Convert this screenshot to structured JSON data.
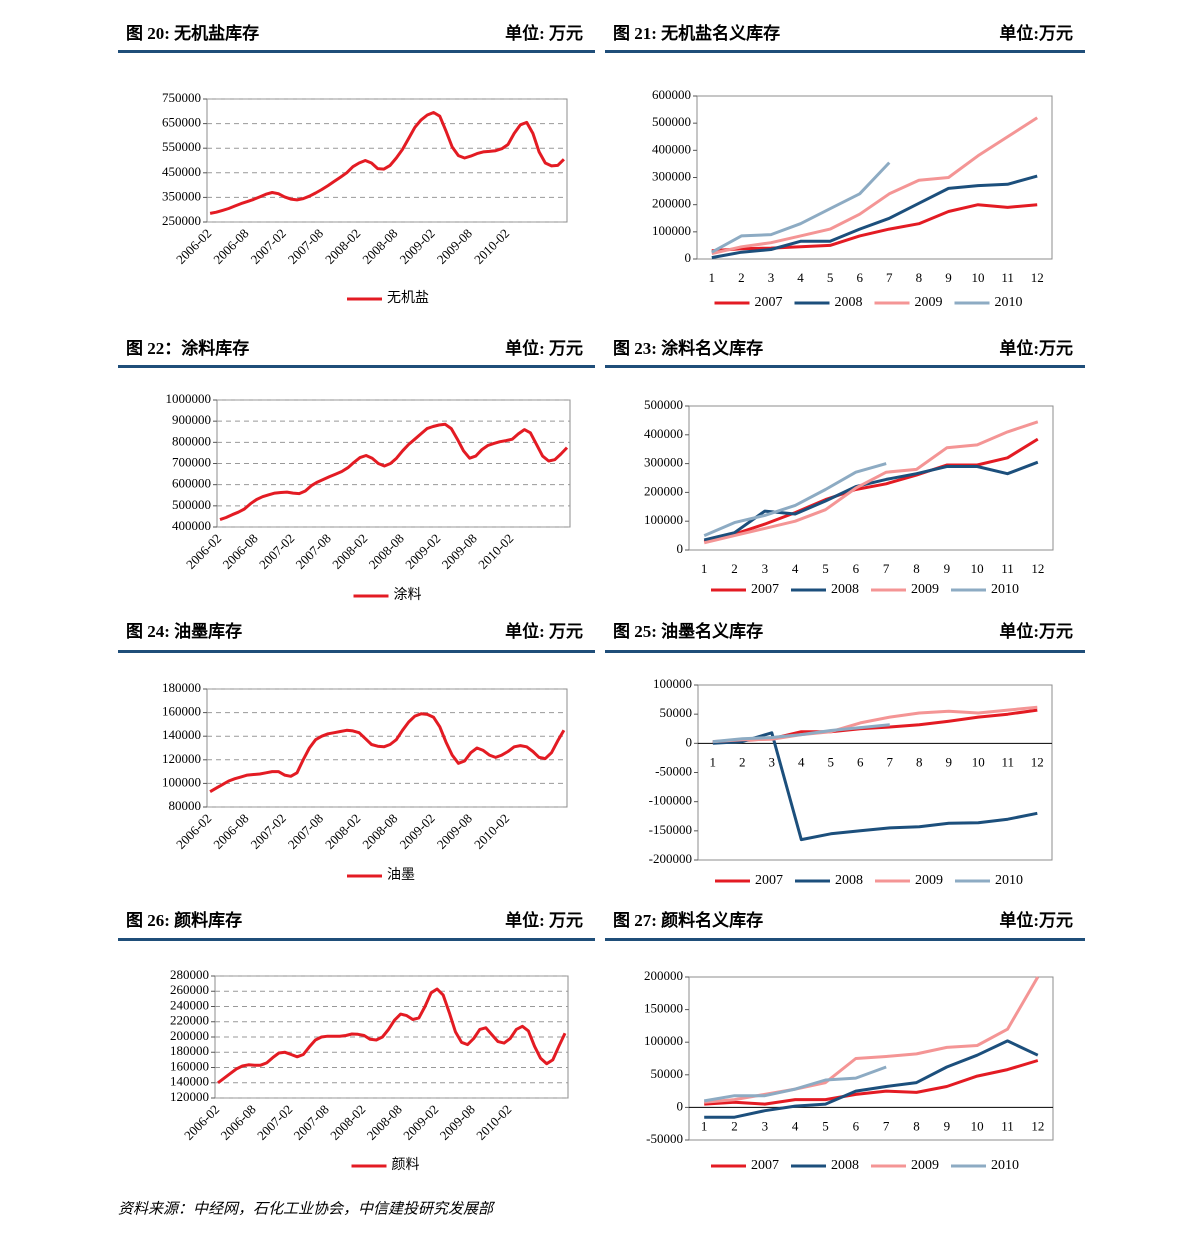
{
  "source": "资料来源：中经网，石化工业协会，中信建投研究发展部",
  "chart_data": [
    {
      "type": "line",
      "title": "图 20: 无机盐库存",
      "subtitle": "单位: 万元",
      "grid": true,
      "categories": [
        "2006-02",
        null,
        null,
        null,
        null,
        null,
        "2006-08",
        null,
        null,
        null,
        null,
        null,
        "2007-02",
        null,
        null,
        null,
        null,
        null,
        "2007-08",
        null,
        null,
        null,
        null,
        null,
        "2008-02",
        null,
        null,
        null,
        null,
        null,
        "2008-08",
        null,
        null,
        null,
        null,
        null,
        "2009-02",
        null,
        null,
        null,
        null,
        null,
        "2009-08",
        null,
        null,
        null,
        null,
        null,
        "2010-02",
        null,
        null,
        null,
        null,
        null,
        null,
        null,
        null,
        null
      ],
      "ylim": [
        250000,
        750000
      ],
      "yticks": [
        250000,
        350000,
        450000,
        550000,
        650000,
        750000
      ],
      "series": [
        {
          "name": "无机盐",
          "color": "#e31b23",
          "values": [
            285000,
            290000,
            297000,
            305000,
            315000,
            325000,
            333000,
            342000,
            352000,
            363000,
            370000,
            365000,
            352000,
            343000,
            340000,
            345000,
            355000,
            368000,
            382000,
            398000,
            415000,
            432000,
            450000,
            475000,
            490000,
            500000,
            490000,
            467000,
            465000,
            480000,
            510000,
            545000,
            590000,
            635000,
            665000,
            685000,
            695000,
            680000,
            620000,
            555000,
            520000,
            510000,
            518000,
            528000,
            535000,
            537000,
            540000,
            548000,
            565000,
            610000,
            645000,
            655000,
            610000,
            535000,
            490000,
            478000,
            480000,
            505000
          ]
        }
      ]
    },
    {
      "type": "line",
      "title": "图 21: 无机盐名义库存",
      "subtitle": "单位:万元",
      "grid": false,
      "categories": [
        "1",
        "2",
        "3",
        "4",
        "5",
        "6",
        "7",
        "8",
        "9",
        "10",
        "11",
        "12"
      ],
      "ylim": [
        0,
        600000
      ],
      "yticks": [
        0,
        100000,
        200000,
        300000,
        400000,
        500000,
        600000
      ],
      "series": [
        {
          "name": "2007",
          "color": "#e31b23",
          "values": [
            30000,
            38000,
            40000,
            45000,
            50000,
            85000,
            110000,
            130000,
            175000,
            200000,
            190000,
            200000
          ]
        },
        {
          "name": "2008",
          "color": "#1c4f7c",
          "values": [
            5000,
            25000,
            35000,
            65000,
            65000,
            110000,
            150000,
            205000,
            260000,
            270000,
            275000,
            305000
          ]
        },
        {
          "name": "2009",
          "color": "#f49595",
          "values": [
            20000,
            45000,
            60000,
            85000,
            110000,
            165000,
            240000,
            290000,
            300000,
            380000,
            450000,
            520000
          ]
        },
        {
          "name": "2010",
          "color": "#8dabc3",
          "values": [
            25000,
            85000,
            90000,
            130000,
            185000,
            240000,
            355000,
            null,
            null,
            null,
            null,
            null
          ]
        }
      ]
    },
    {
      "type": "line",
      "title": "图 22：涂料库存",
      "subtitle": "单位: 万元",
      "grid": true,
      "categories": [
        "2006-02",
        null,
        null,
        null,
        null,
        null,
        "2006-08",
        null,
        null,
        null,
        null,
        null,
        "2007-02",
        null,
        null,
        null,
        null,
        null,
        "2007-08",
        null,
        null,
        null,
        null,
        null,
        "2008-02",
        null,
        null,
        null,
        null,
        null,
        "2008-08",
        null,
        null,
        null,
        null,
        null,
        "2009-02",
        null,
        null,
        null,
        null,
        null,
        "2009-08",
        null,
        null,
        null,
        null,
        null,
        "2010-02",
        null,
        null,
        null,
        null,
        null,
        null,
        null,
        null,
        null
      ],
      "ylim": [
        400000,
        1000000
      ],
      "yticks": [
        400000,
        500000,
        600000,
        700000,
        800000,
        900000,
        1000000
      ],
      "series": [
        {
          "name": "涂料",
          "color": "#e31b23",
          "values": [
            435000,
            445000,
            458000,
            470000,
            485000,
            510000,
            530000,
            543000,
            552000,
            560000,
            563000,
            565000,
            560000,
            558000,
            570000,
            595000,
            612000,
            625000,
            638000,
            650000,
            662000,
            680000,
            705000,
            728000,
            738000,
            725000,
            700000,
            688000,
            700000,
            725000,
            760000,
            790000,
            815000,
            840000,
            865000,
            875000,
            882000,
            885000,
            865000,
            815000,
            760000,
            725000,
            735000,
            765000,
            785000,
            795000,
            803000,
            808000,
            815000,
            840000,
            860000,
            845000,
            790000,
            735000,
            712000,
            718000,
            745000,
            775000
          ]
        }
      ]
    },
    {
      "type": "line",
      "title": "图 23: 涂料名义库存",
      "subtitle": "单位:万元",
      "grid": false,
      "categories": [
        "1",
        "2",
        "3",
        "4",
        "5",
        "6",
        "7",
        "8",
        "9",
        "10",
        "11",
        "12"
      ],
      "ylim": [
        0,
        500000
      ],
      "yticks": [
        0,
        100000,
        200000,
        300000,
        400000,
        500000
      ],
      "series": [
        {
          "name": "2007",
          "color": "#e31b23",
          "values": [
            30000,
            55000,
            90000,
            130000,
            175000,
            210000,
            230000,
            260000,
            295000,
            295000,
            320000,
            385000
          ]
        },
        {
          "name": "2008",
          "color": "#1c4f7c",
          "values": [
            35000,
            60000,
            135000,
            125000,
            170000,
            220000,
            245000,
            265000,
            290000,
            290000,
            265000,
            305000
          ]
        },
        {
          "name": "2009",
          "color": "#f49595",
          "values": [
            25000,
            50000,
            75000,
            100000,
            140000,
            215000,
            270000,
            280000,
            355000,
            365000,
            410000,
            445000
          ]
        },
        {
          "name": "2010",
          "color": "#8dabc3",
          "values": [
            50000,
            95000,
            120000,
            155000,
            210000,
            270000,
            300000,
            null,
            null,
            null,
            null,
            null
          ]
        }
      ]
    },
    {
      "type": "line",
      "title": "图 24: 油墨库存",
      "subtitle": "单位: 万元",
      "grid": true,
      "categories": [
        "2006-02",
        null,
        null,
        null,
        null,
        null,
        "2006-08",
        null,
        null,
        null,
        null,
        null,
        "2007-02",
        null,
        null,
        null,
        null,
        null,
        "2007-08",
        null,
        null,
        null,
        null,
        null,
        "2008-02",
        null,
        null,
        null,
        null,
        null,
        "2008-08",
        null,
        null,
        null,
        null,
        null,
        "2009-02",
        null,
        null,
        null,
        null,
        null,
        "2009-08",
        null,
        null,
        null,
        null,
        null,
        "2010-02",
        null,
        null,
        null,
        null,
        null,
        null,
        null,
        null,
        null
      ],
      "ylim": [
        80000,
        180000
      ],
      "yticks": [
        80000,
        100000,
        120000,
        140000,
        160000,
        180000
      ],
      "series": [
        {
          "name": "油墨",
          "color": "#e31b23",
          "values": [
            93000,
            96000,
            99000,
            102000,
            104000,
            105500,
            107000,
            107500,
            108000,
            109000,
            110000,
            110000,
            107000,
            106000,
            109000,
            120000,
            130000,
            137000,
            140000,
            142000,
            143000,
            144000,
            145000,
            144500,
            143000,
            138000,
            133000,
            131500,
            131000,
            133000,
            137000,
            145000,
            152000,
            157000,
            159000,
            158500,
            156000,
            148000,
            135000,
            124000,
            117000,
            119000,
            126000,
            130000,
            128000,
            124000,
            122000,
            124000,
            127000,
            131000,
            132000,
            131000,
            127000,
            122000,
            121000,
            126000,
            136000,
            145000
          ]
        }
      ]
    },
    {
      "type": "line",
      "title": "图 25: 油墨名义库存",
      "subtitle": "单位:万元",
      "grid": false,
      "categories": [
        "1",
        "2",
        "3",
        "4",
        "5",
        "6",
        "7",
        "8",
        "9",
        "10",
        "11",
        "12"
      ],
      "ylim": [
        -200000,
        100000
      ],
      "yticks": [
        -200000,
        -150000,
        -100000,
        -50000,
        0,
        50000,
        100000
      ],
      "series": [
        {
          "name": "2007",
          "color": "#e31b23",
          "values": [
            2000,
            5000,
            8000,
            20000,
            20000,
            25000,
            28000,
            32000,
            38000,
            45000,
            50000,
            57000
          ]
        },
        {
          "name": "2008",
          "color": "#1c4f7c",
          "values": [
            0,
            3000,
            18000,
            -165000,
            -155000,
            -150000,
            -145000,
            -143000,
            -137000,
            -136000,
            -130000,
            -120000
          ]
        },
        {
          "name": "2009",
          "color": "#f49595",
          "values": [
            3000,
            6000,
            7000,
            15000,
            20000,
            35000,
            45000,
            52000,
            55000,
            52000,
            57000,
            62000
          ]
        },
        {
          "name": "2010",
          "color": "#8dabc3",
          "values": [
            3000,
            8000,
            10000,
            15000,
            22000,
            27000,
            32000,
            null,
            null,
            null,
            null,
            null
          ]
        }
      ]
    },
    {
      "type": "line",
      "title": "图 26: 颜料库存",
      "subtitle": "单位: 万元",
      "grid": true,
      "categories": [
        "2006-02",
        null,
        null,
        null,
        null,
        null,
        "2006-08",
        null,
        null,
        null,
        null,
        null,
        "2007-02",
        null,
        null,
        null,
        null,
        null,
        "2007-08",
        null,
        null,
        null,
        null,
        null,
        "2008-02",
        null,
        null,
        null,
        null,
        null,
        "2008-08",
        null,
        null,
        null,
        null,
        null,
        "2009-02",
        null,
        null,
        null,
        null,
        null,
        "2009-08",
        null,
        null,
        null,
        null,
        null,
        "2010-02",
        null,
        null,
        null,
        null,
        null,
        null,
        null,
        null,
        null
      ],
      "ylim": [
        120000,
        280000
      ],
      "yticks": [
        120000,
        140000,
        160000,
        180000,
        200000,
        220000,
        240000,
        260000,
        280000
      ],
      "series": [
        {
          "name": "颜料",
          "color": "#e31b23",
          "values": [
            140000,
            146000,
            152000,
            158000,
            162000,
            163500,
            163000,
            163000,
            166000,
            173000,
            179000,
            180000,
            177000,
            174000,
            177000,
            187000,
            196000,
            200000,
            201000,
            201000,
            201000,
            202000,
            204000,
            203500,
            202000,
            197000,
            196000,
            200000,
            210000,
            222000,
            230000,
            228000,
            223000,
            225000,
            240000,
            258000,
            263000,
            255000,
            232000,
            207000,
            193000,
            190000,
            198000,
            210000,
            212000,
            203000,
            194000,
            192000,
            198000,
            210000,
            214000,
            208000,
            188000,
            172000,
            165000,
            170000,
            188000,
            205000
          ]
        }
      ]
    },
    {
      "type": "line",
      "title": "图 27: 颜料名义库存",
      "subtitle": "单位:万元",
      "grid": false,
      "categories": [
        "1",
        "2",
        "3",
        "4",
        "5",
        "6",
        "7",
        "8",
        "9",
        "10",
        "11",
        "12"
      ],
      "ylim": [
        -50000,
        200000
      ],
      "yticks": [
        -50000,
        0,
        50000,
        100000,
        150000,
        200000
      ],
      "series": [
        {
          "name": "2007",
          "color": "#e31b23",
          "values": [
            5000,
            8000,
            5000,
            12000,
            12000,
            20000,
            25000,
            23000,
            32000,
            48000,
            58000,
            72000
          ]
        },
        {
          "name": "2008",
          "color": "#1c4f7c",
          "values": [
            -15000,
            -15000,
            -5000,
            2000,
            5000,
            25000,
            32000,
            38000,
            62000,
            80000,
            102000,
            80000
          ]
        },
        {
          "name": "2009",
          "color": "#f49595",
          "values": [
            8000,
            12000,
            20000,
            28000,
            38000,
            75000,
            78000,
            82000,
            92000,
            95000,
            120000,
            200000
          ]
        },
        {
          "name": "2010",
          "color": "#8dabc3",
          "values": [
            10000,
            18000,
            18000,
            28000,
            42000,
            45000,
            62000,
            null,
            null,
            null,
            null,
            null
          ]
        }
      ]
    }
  ]
}
